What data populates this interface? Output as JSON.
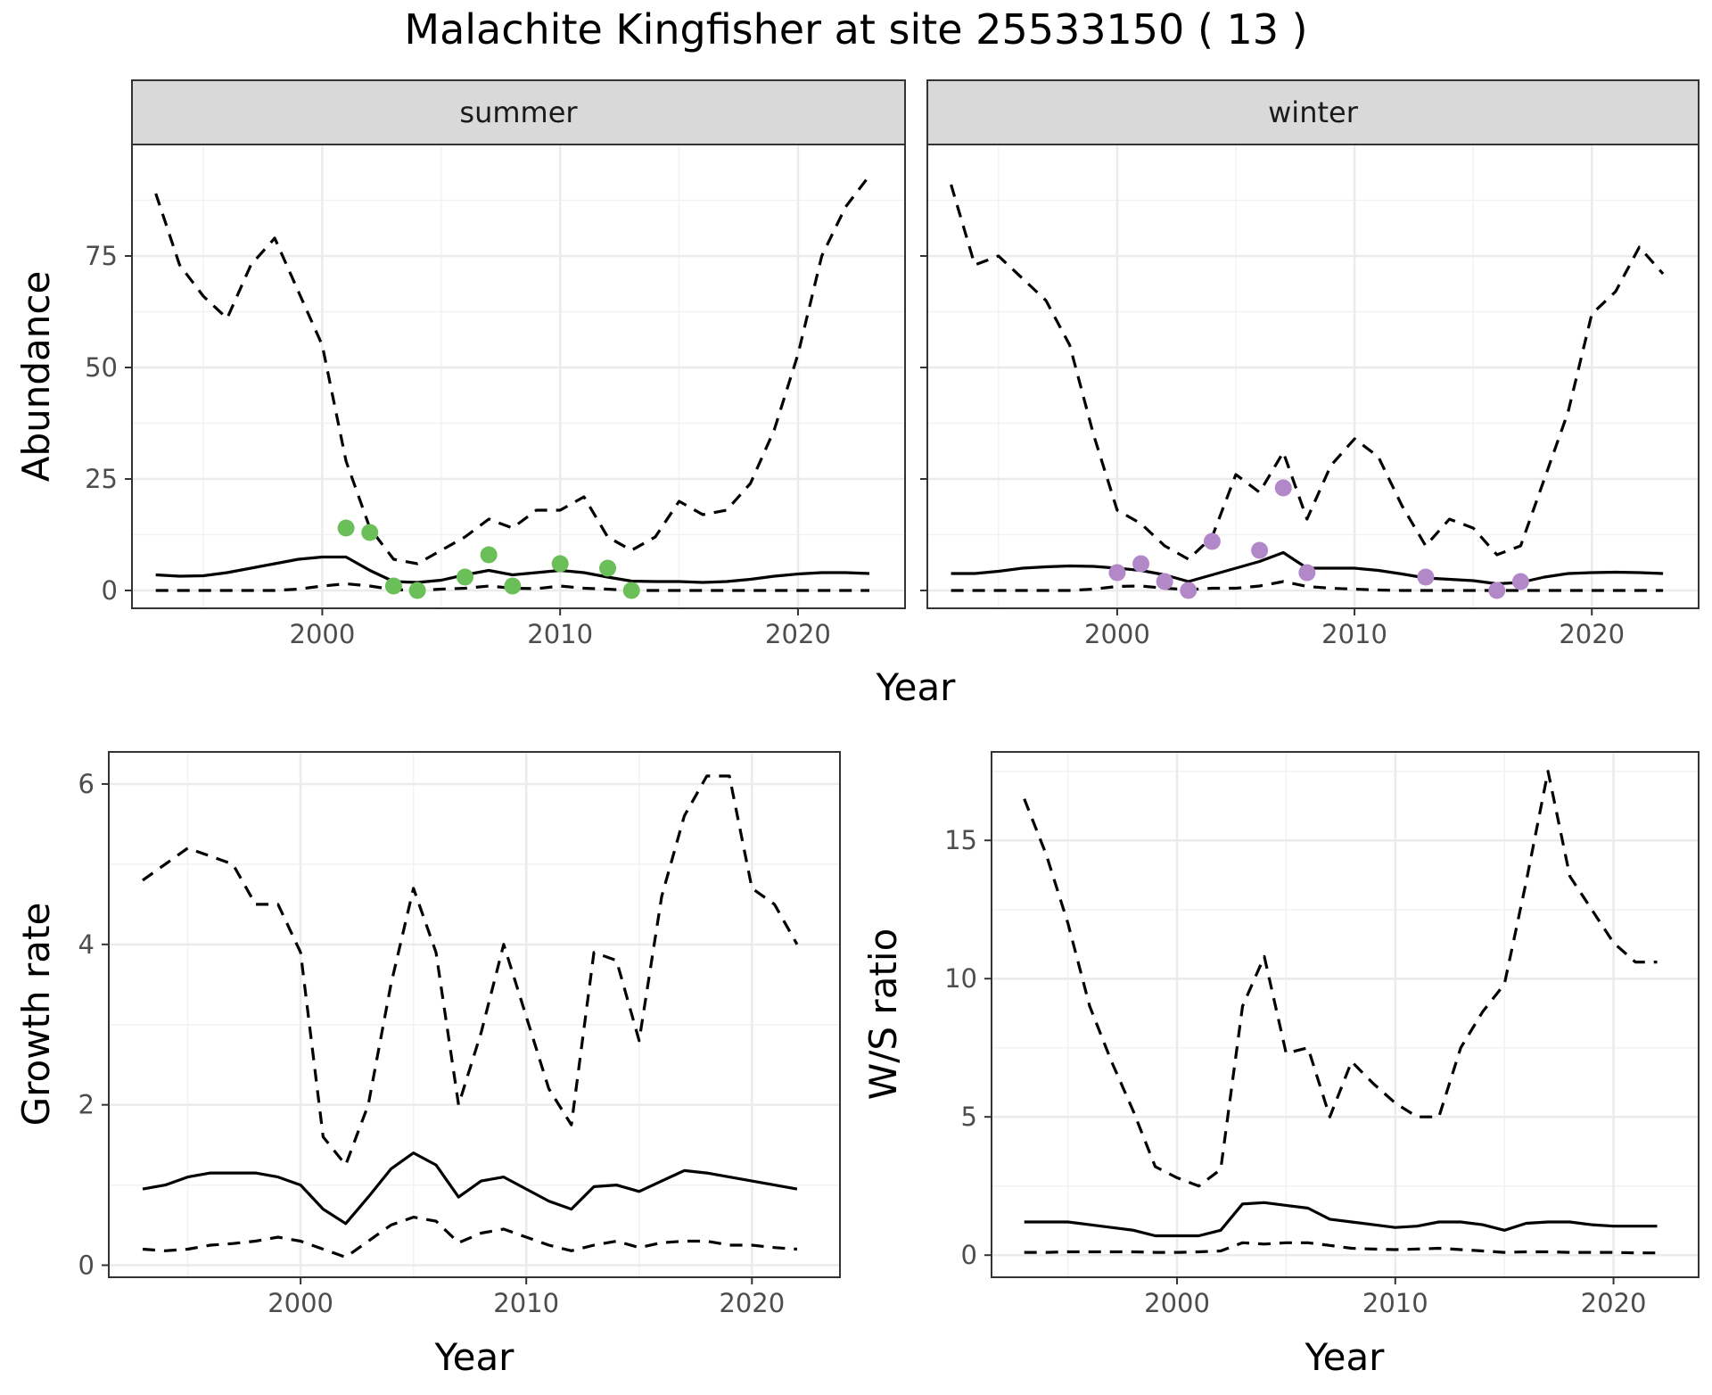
{
  "figure": {
    "title": "Malachite Kingfisher at site 25533150 ( 13 )"
  },
  "colors": {
    "summer_points": "#6BBF59",
    "winter_points": "#B388C9",
    "lines": "#000000",
    "grid_major": "#ebebeb",
    "grid_minor": "#f2f2f2",
    "strip_fill": "#d9d9d9",
    "panel_border": "#333333"
  },
  "chart_data": [
    {
      "type": "line",
      "facet": "summer",
      "xlabel": "Year",
      "ylabel": "Abundance",
      "xlim": [
        1992,
        2024.5
      ],
      "ylim": [
        -4,
        100
      ],
      "xticks": [
        2000,
        2010,
        2020
      ],
      "yticks": [
        0,
        25,
        50,
        75
      ],
      "grid": true,
      "x": [
        1993,
        1994,
        1995,
        1996,
        1997,
        1998,
        1999,
        2000,
        2001,
        2002,
        2003,
        2004,
        2005,
        2006,
        2007,
        2008,
        2009,
        2010,
        2011,
        2012,
        2013,
        2014,
        2015,
        2016,
        2017,
        2018,
        2019,
        2020,
        2021,
        2022,
        2023
      ],
      "series": [
        {
          "role": "upper",
          "style": "dashed",
          "values": [
            89,
            73,
            66,
            61,
            73,
            79,
            67,
            55,
            29,
            14,
            7,
            6,
            9,
            12,
            16,
            14,
            18,
            18,
            21,
            12,
            9,
            12,
            20,
            17,
            18,
            24,
            36,
            53,
            75,
            86,
            93
          ]
        },
        {
          "role": "mean",
          "style": "solid",
          "values": [
            3.5,
            3.2,
            3.3,
            4,
            5,
            6,
            7,
            7.5,
            7.5,
            4.5,
            2,
            1.8,
            2.3,
            3.5,
            4.5,
            3.5,
            4,
            4.5,
            4,
            3,
            2.1,
            2,
            2,
            1.8,
            2,
            2.5,
            3.2,
            3.7,
            4,
            4,
            3.8
          ]
        },
        {
          "role": "lower",
          "style": "dashed",
          "values": [
            0,
            0,
            0,
            0,
            0,
            0,
            0.3,
            1,
            1.5,
            1,
            0.2,
            0,
            0.3,
            0.5,
            1,
            0.5,
            0.4,
            1,
            0.5,
            0.3,
            0,
            0,
            0,
            0,
            0,
            0,
            0,
            0,
            0,
            0,
            0
          ]
        }
      ],
      "points": {
        "x": [
          2001,
          2002,
          2003,
          2004,
          2006,
          2007,
          2008,
          2010,
          2012,
          2013
        ],
        "y": [
          14,
          13,
          1,
          0,
          3,
          8,
          1,
          6,
          5,
          0
        ]
      }
    },
    {
      "type": "line",
      "facet": "winter",
      "xlabel": "Year",
      "ylabel": "Abundance",
      "xlim": [
        1992,
        2024.5
      ],
      "ylim": [
        -4,
        100
      ],
      "xticks": [
        2000,
        2010,
        2020
      ],
      "yticks": [
        0,
        25,
        50,
        75
      ],
      "grid": true,
      "x": [
        1993,
        1994,
        1995,
        1996,
        1997,
        1998,
        1999,
        2000,
        2001,
        2002,
        2003,
        2004,
        2005,
        2006,
        2007,
        2008,
        2009,
        2010,
        2011,
        2012,
        2013,
        2014,
        2015,
        2016,
        2017,
        2018,
        2019,
        2020,
        2021,
        2022,
        2023
      ],
      "series": [
        {
          "role": "upper",
          "style": "dashed",
          "values": [
            91,
            73,
            75,
            70,
            65,
            55,
            35,
            18,
            15,
            10,
            7,
            12,
            26,
            22,
            31,
            16,
            28,
            34,
            30,
            19,
            10,
            16,
            14,
            8,
            10,
            25,
            40,
            62,
            67,
            77,
            71
          ]
        },
        {
          "role": "mean",
          "style": "solid",
          "values": [
            3.8,
            3.8,
            4.3,
            5,
            5.3,
            5.5,
            5.4,
            5,
            4.5,
            3.5,
            2,
            3.5,
            5,
            6.5,
            8.5,
            5,
            5,
            5,
            4.5,
            3.7,
            2.8,
            2.5,
            2.2,
            1.5,
            1.8,
            3,
            3.8,
            4,
            4.1,
            4,
            3.8
          ]
        },
        {
          "role": "lower",
          "style": "dashed",
          "values": [
            0,
            0,
            0,
            0,
            0,
            0,
            0.3,
            0.9,
            1,
            0.5,
            0.2,
            0.5,
            0.5,
            1,
            2,
            0.9,
            0.5,
            0.3,
            0.1,
            0,
            0,
            0,
            0,
            0,
            0,
            0,
            0,
            0,
            0,
            0,
            0
          ]
        }
      ],
      "points": {
        "x": [
          2000,
          2001,
          2002,
          2003,
          2004,
          2006,
          2007,
          2008,
          2013,
          2016,
          2017
        ],
        "y": [
          4,
          6,
          2,
          0,
          11,
          9,
          23,
          4,
          3,
          0,
          2
        ]
      }
    },
    {
      "type": "line",
      "xlabel": "Year",
      "ylabel": "Growth rate",
      "xlim": [
        1991.5,
        2023.9
      ],
      "ylim": [
        -0.15,
        6.4
      ],
      "xticks": [
        2000,
        2010,
        2020
      ],
      "yticks": [
        0,
        2,
        4,
        6
      ],
      "grid": true,
      "x": [
        1993,
        1994,
        1995,
        1996,
        1997,
        1998,
        1999,
        2000,
        2001,
        2002,
        2003,
        2004,
        2005,
        2006,
        2007,
        2008,
        2009,
        2010,
        2011,
        2012,
        2013,
        2014,
        2015,
        2016,
        2017,
        2018,
        2019,
        2020,
        2021,
        2022
      ],
      "series": [
        {
          "role": "upper",
          "style": "dashed",
          "values": [
            4.8,
            5.0,
            5.2,
            5.1,
            5.0,
            4.5,
            4.5,
            3.9,
            1.6,
            1.25,
            2.0,
            3.5,
            4.7,
            3.9,
            2.0,
            2.9,
            4.0,
            3.1,
            2.2,
            1.75,
            3.9,
            3.8,
            2.8,
            4.6,
            5.6,
            6.1,
            6.1,
            4.7,
            4.5,
            4.0
          ]
        },
        {
          "role": "mean",
          "style": "solid",
          "values": [
            0.95,
            1.0,
            1.1,
            1.15,
            1.15,
            1.15,
            1.1,
            1.0,
            0.7,
            0.52,
            0.85,
            1.2,
            1.4,
            1.25,
            0.85,
            1.05,
            1.1,
            0.95,
            0.8,
            0.7,
            0.98,
            1.0,
            0.92,
            1.05,
            1.18,
            1.15,
            1.1,
            1.05,
            1.0,
            0.95
          ]
        },
        {
          "role": "lower",
          "style": "dashed",
          "values": [
            0.2,
            0.18,
            0.2,
            0.25,
            0.27,
            0.3,
            0.35,
            0.3,
            0.2,
            0.1,
            0.3,
            0.5,
            0.6,
            0.55,
            0.28,
            0.4,
            0.45,
            0.35,
            0.25,
            0.18,
            0.25,
            0.3,
            0.22,
            0.28,
            0.3,
            0.3,
            0.25,
            0.25,
            0.22,
            0.2
          ]
        }
      ]
    },
    {
      "type": "line",
      "xlabel": "Year",
      "ylabel": "W/S ratio",
      "xlim": [
        1991.5,
        2023.9
      ],
      "ylim": [
        -0.8,
        18.2
      ],
      "xticks": [
        2000,
        2010,
        2020
      ],
      "yticks": [
        0,
        5,
        10,
        15
      ],
      "grid": true,
      "x": [
        1993,
        1994,
        1995,
        1996,
        1997,
        1998,
        1999,
        2000,
        2001,
        2002,
        2003,
        2004,
        2005,
        2006,
        2007,
        2008,
        2009,
        2010,
        2011,
        2012,
        2013,
        2014,
        2015,
        2016,
        2017,
        2018,
        2019,
        2020,
        2021,
        2022
      ],
      "series": [
        {
          "role": "upper",
          "style": "dashed",
          "values": [
            16.5,
            14.5,
            12.0,
            9.0,
            7.0,
            5.2,
            3.2,
            2.8,
            2.5,
            3.1,
            9.0,
            10.8,
            7.3,
            7.5,
            5.0,
            7.0,
            6.2,
            5.5,
            5.0,
            5.0,
            7.5,
            8.8,
            9.8,
            13.5,
            17.5,
            13.7,
            12.5,
            11.3,
            10.6,
            10.6
          ]
        },
        {
          "role": "mean",
          "style": "solid",
          "values": [
            1.2,
            1.2,
            1.2,
            1.1,
            1.0,
            0.9,
            0.7,
            0.7,
            0.7,
            0.9,
            1.85,
            1.9,
            1.8,
            1.7,
            1.3,
            1.2,
            1.1,
            1.0,
            1.05,
            1.2,
            1.2,
            1.1,
            0.9,
            1.15,
            1.2,
            1.2,
            1.1,
            1.05,
            1.05,
            1.05
          ]
        },
        {
          "role": "lower",
          "style": "dashed",
          "values": [
            0.1,
            0.1,
            0.12,
            0.12,
            0.12,
            0.12,
            0.1,
            0.1,
            0.12,
            0.15,
            0.45,
            0.4,
            0.45,
            0.45,
            0.35,
            0.25,
            0.22,
            0.2,
            0.22,
            0.25,
            0.2,
            0.15,
            0.1,
            0.12,
            0.12,
            0.1,
            0.1,
            0.1,
            0.08,
            0.08
          ]
        }
      ]
    }
  ]
}
